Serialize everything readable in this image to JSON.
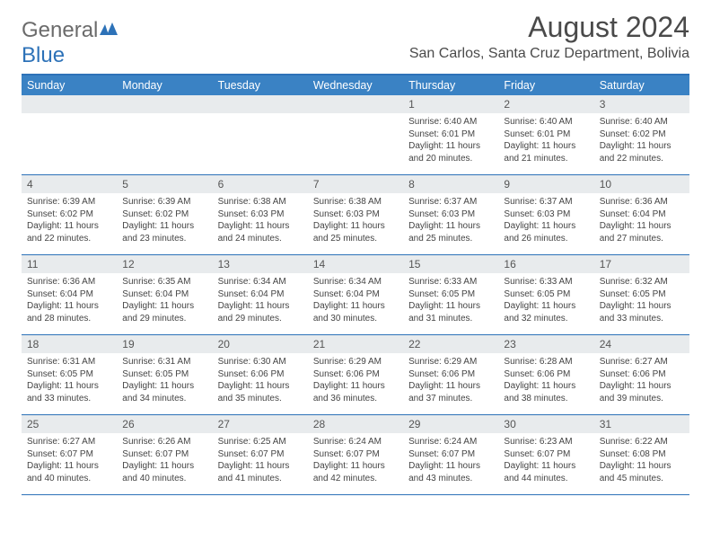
{
  "brand": {
    "part1": "General",
    "part2": "Blue"
  },
  "title": "August 2024",
  "location": "San Carlos, Santa Cruz Department, Bolivia",
  "colors": {
    "header_bg": "#3a82c4",
    "border": "#2d72b8",
    "daynum_bg": "#e8ebed",
    "text": "#444444",
    "title_text": "#4a4a4a"
  },
  "weekdays": [
    "Sunday",
    "Monday",
    "Tuesday",
    "Wednesday",
    "Thursday",
    "Friday",
    "Saturday"
  ],
  "weeks": [
    [
      null,
      null,
      null,
      null,
      {
        "n": "1",
        "sr": "Sunrise: 6:40 AM",
        "ss": "Sunset: 6:01 PM",
        "dl": "Daylight: 11 hours and 20 minutes."
      },
      {
        "n": "2",
        "sr": "Sunrise: 6:40 AM",
        "ss": "Sunset: 6:01 PM",
        "dl": "Daylight: 11 hours and 21 minutes."
      },
      {
        "n": "3",
        "sr": "Sunrise: 6:40 AM",
        "ss": "Sunset: 6:02 PM",
        "dl": "Daylight: 11 hours and 22 minutes."
      }
    ],
    [
      {
        "n": "4",
        "sr": "Sunrise: 6:39 AM",
        "ss": "Sunset: 6:02 PM",
        "dl": "Daylight: 11 hours and 22 minutes."
      },
      {
        "n": "5",
        "sr": "Sunrise: 6:39 AM",
        "ss": "Sunset: 6:02 PM",
        "dl": "Daylight: 11 hours and 23 minutes."
      },
      {
        "n": "6",
        "sr": "Sunrise: 6:38 AM",
        "ss": "Sunset: 6:03 PM",
        "dl": "Daylight: 11 hours and 24 minutes."
      },
      {
        "n": "7",
        "sr": "Sunrise: 6:38 AM",
        "ss": "Sunset: 6:03 PM",
        "dl": "Daylight: 11 hours and 25 minutes."
      },
      {
        "n": "8",
        "sr": "Sunrise: 6:37 AM",
        "ss": "Sunset: 6:03 PM",
        "dl": "Daylight: 11 hours and 25 minutes."
      },
      {
        "n": "9",
        "sr": "Sunrise: 6:37 AM",
        "ss": "Sunset: 6:03 PM",
        "dl": "Daylight: 11 hours and 26 minutes."
      },
      {
        "n": "10",
        "sr": "Sunrise: 6:36 AM",
        "ss": "Sunset: 6:04 PM",
        "dl": "Daylight: 11 hours and 27 minutes."
      }
    ],
    [
      {
        "n": "11",
        "sr": "Sunrise: 6:36 AM",
        "ss": "Sunset: 6:04 PM",
        "dl": "Daylight: 11 hours and 28 minutes."
      },
      {
        "n": "12",
        "sr": "Sunrise: 6:35 AM",
        "ss": "Sunset: 6:04 PM",
        "dl": "Daylight: 11 hours and 29 minutes."
      },
      {
        "n": "13",
        "sr": "Sunrise: 6:34 AM",
        "ss": "Sunset: 6:04 PM",
        "dl": "Daylight: 11 hours and 29 minutes."
      },
      {
        "n": "14",
        "sr": "Sunrise: 6:34 AM",
        "ss": "Sunset: 6:04 PM",
        "dl": "Daylight: 11 hours and 30 minutes."
      },
      {
        "n": "15",
        "sr": "Sunrise: 6:33 AM",
        "ss": "Sunset: 6:05 PM",
        "dl": "Daylight: 11 hours and 31 minutes."
      },
      {
        "n": "16",
        "sr": "Sunrise: 6:33 AM",
        "ss": "Sunset: 6:05 PM",
        "dl": "Daylight: 11 hours and 32 minutes."
      },
      {
        "n": "17",
        "sr": "Sunrise: 6:32 AM",
        "ss": "Sunset: 6:05 PM",
        "dl": "Daylight: 11 hours and 33 minutes."
      }
    ],
    [
      {
        "n": "18",
        "sr": "Sunrise: 6:31 AM",
        "ss": "Sunset: 6:05 PM",
        "dl": "Daylight: 11 hours and 33 minutes."
      },
      {
        "n": "19",
        "sr": "Sunrise: 6:31 AM",
        "ss": "Sunset: 6:05 PM",
        "dl": "Daylight: 11 hours and 34 minutes."
      },
      {
        "n": "20",
        "sr": "Sunrise: 6:30 AM",
        "ss": "Sunset: 6:06 PM",
        "dl": "Daylight: 11 hours and 35 minutes."
      },
      {
        "n": "21",
        "sr": "Sunrise: 6:29 AM",
        "ss": "Sunset: 6:06 PM",
        "dl": "Daylight: 11 hours and 36 minutes."
      },
      {
        "n": "22",
        "sr": "Sunrise: 6:29 AM",
        "ss": "Sunset: 6:06 PM",
        "dl": "Daylight: 11 hours and 37 minutes."
      },
      {
        "n": "23",
        "sr": "Sunrise: 6:28 AM",
        "ss": "Sunset: 6:06 PM",
        "dl": "Daylight: 11 hours and 38 minutes."
      },
      {
        "n": "24",
        "sr": "Sunrise: 6:27 AM",
        "ss": "Sunset: 6:06 PM",
        "dl": "Daylight: 11 hours and 39 minutes."
      }
    ],
    [
      {
        "n": "25",
        "sr": "Sunrise: 6:27 AM",
        "ss": "Sunset: 6:07 PM",
        "dl": "Daylight: 11 hours and 40 minutes."
      },
      {
        "n": "26",
        "sr": "Sunrise: 6:26 AM",
        "ss": "Sunset: 6:07 PM",
        "dl": "Daylight: 11 hours and 40 minutes."
      },
      {
        "n": "27",
        "sr": "Sunrise: 6:25 AM",
        "ss": "Sunset: 6:07 PM",
        "dl": "Daylight: 11 hours and 41 minutes."
      },
      {
        "n": "28",
        "sr": "Sunrise: 6:24 AM",
        "ss": "Sunset: 6:07 PM",
        "dl": "Daylight: 11 hours and 42 minutes."
      },
      {
        "n": "29",
        "sr": "Sunrise: 6:24 AM",
        "ss": "Sunset: 6:07 PM",
        "dl": "Daylight: 11 hours and 43 minutes."
      },
      {
        "n": "30",
        "sr": "Sunrise: 6:23 AM",
        "ss": "Sunset: 6:07 PM",
        "dl": "Daylight: 11 hours and 44 minutes."
      },
      {
        "n": "31",
        "sr": "Sunrise: 6:22 AM",
        "ss": "Sunset: 6:08 PM",
        "dl": "Daylight: 11 hours and 45 minutes."
      }
    ]
  ]
}
